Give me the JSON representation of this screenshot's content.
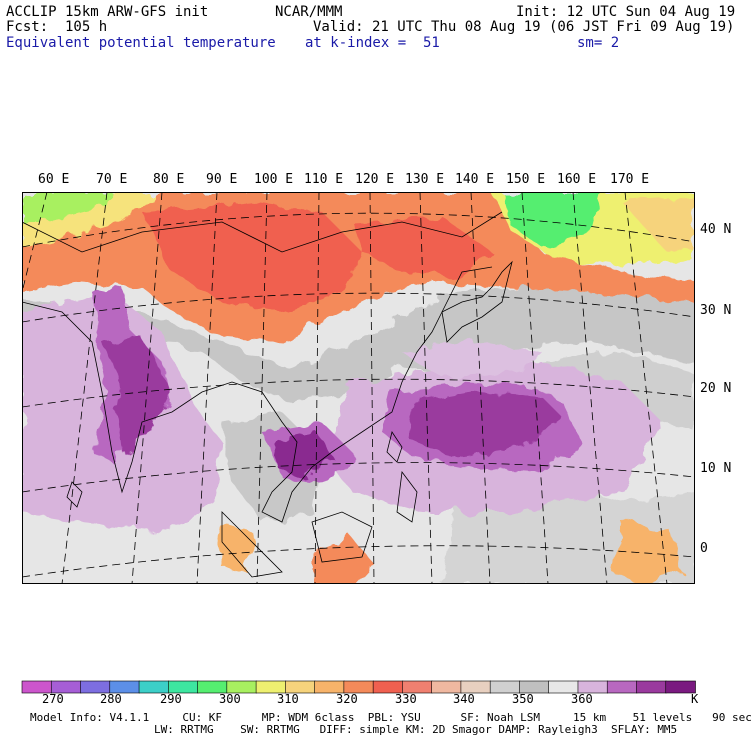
{
  "header": {
    "model": "ACCLIP 15km ARW-GFS init",
    "forecast": "Fcst:  105 h",
    "field": "Equivalent potential temperature",
    "org": "NCAR/MMM",
    "init": "Init: 12 UTC Sun 04 Aug 19",
    "valid": "Valid: 21 UTC Thu 08 Aug 19 (06 JST Fri 09 Aug 19)",
    "level": "at k-index =  51",
    "smoothing": "sm= 2"
  },
  "map": {
    "lon_labels": [
      "60 E",
      "70 E",
      "80 E",
      "90 E",
      "100 E",
      "110 E",
      "120 E",
      "130 E",
      "140 E",
      "150 E",
      "160 E",
      "170 E"
    ],
    "lat_labels": [
      "40 N",
      "30 N",
      "20 N",
      "10 N",
      "0"
    ]
  },
  "colorbar": {
    "colors": [
      "#cc55cc",
      "#a65ed6",
      "#7d6ee0",
      "#5c8fe8",
      "#3ccfc8",
      "#3de6a0",
      "#55ee70",
      "#a8f060",
      "#eef070",
      "#f6d37c",
      "#f7b36a",
      "#f48a5a",
      "#f06050",
      "#f08070",
      "#f0b8a0",
      "#e8d0c0",
      "#d0d0d0",
      "#c0c0c0",
      "#e8e8e8",
      "#d8b4dc",
      "#b868c0",
      "#9a3a9e",
      "#7a1a80"
    ],
    "tick_labels": [
      "270",
      "280",
      "290",
      "300",
      "310",
      "320",
      "330",
      "340",
      "350",
      "360"
    ],
    "unit": "K"
  },
  "footer": {
    "line1": "Model Info: V4.1.1     CU: KF      MP: WDM 6class  PBL: YSU      SF: Noah LSM     15 km    51 levels   90 sec",
    "line2": "LW: RRTMG    SW: RRTMG   DIFF: simple KM: 2D Smagor DAMP: Rayleigh3  SFLAY: MM5"
  }
}
